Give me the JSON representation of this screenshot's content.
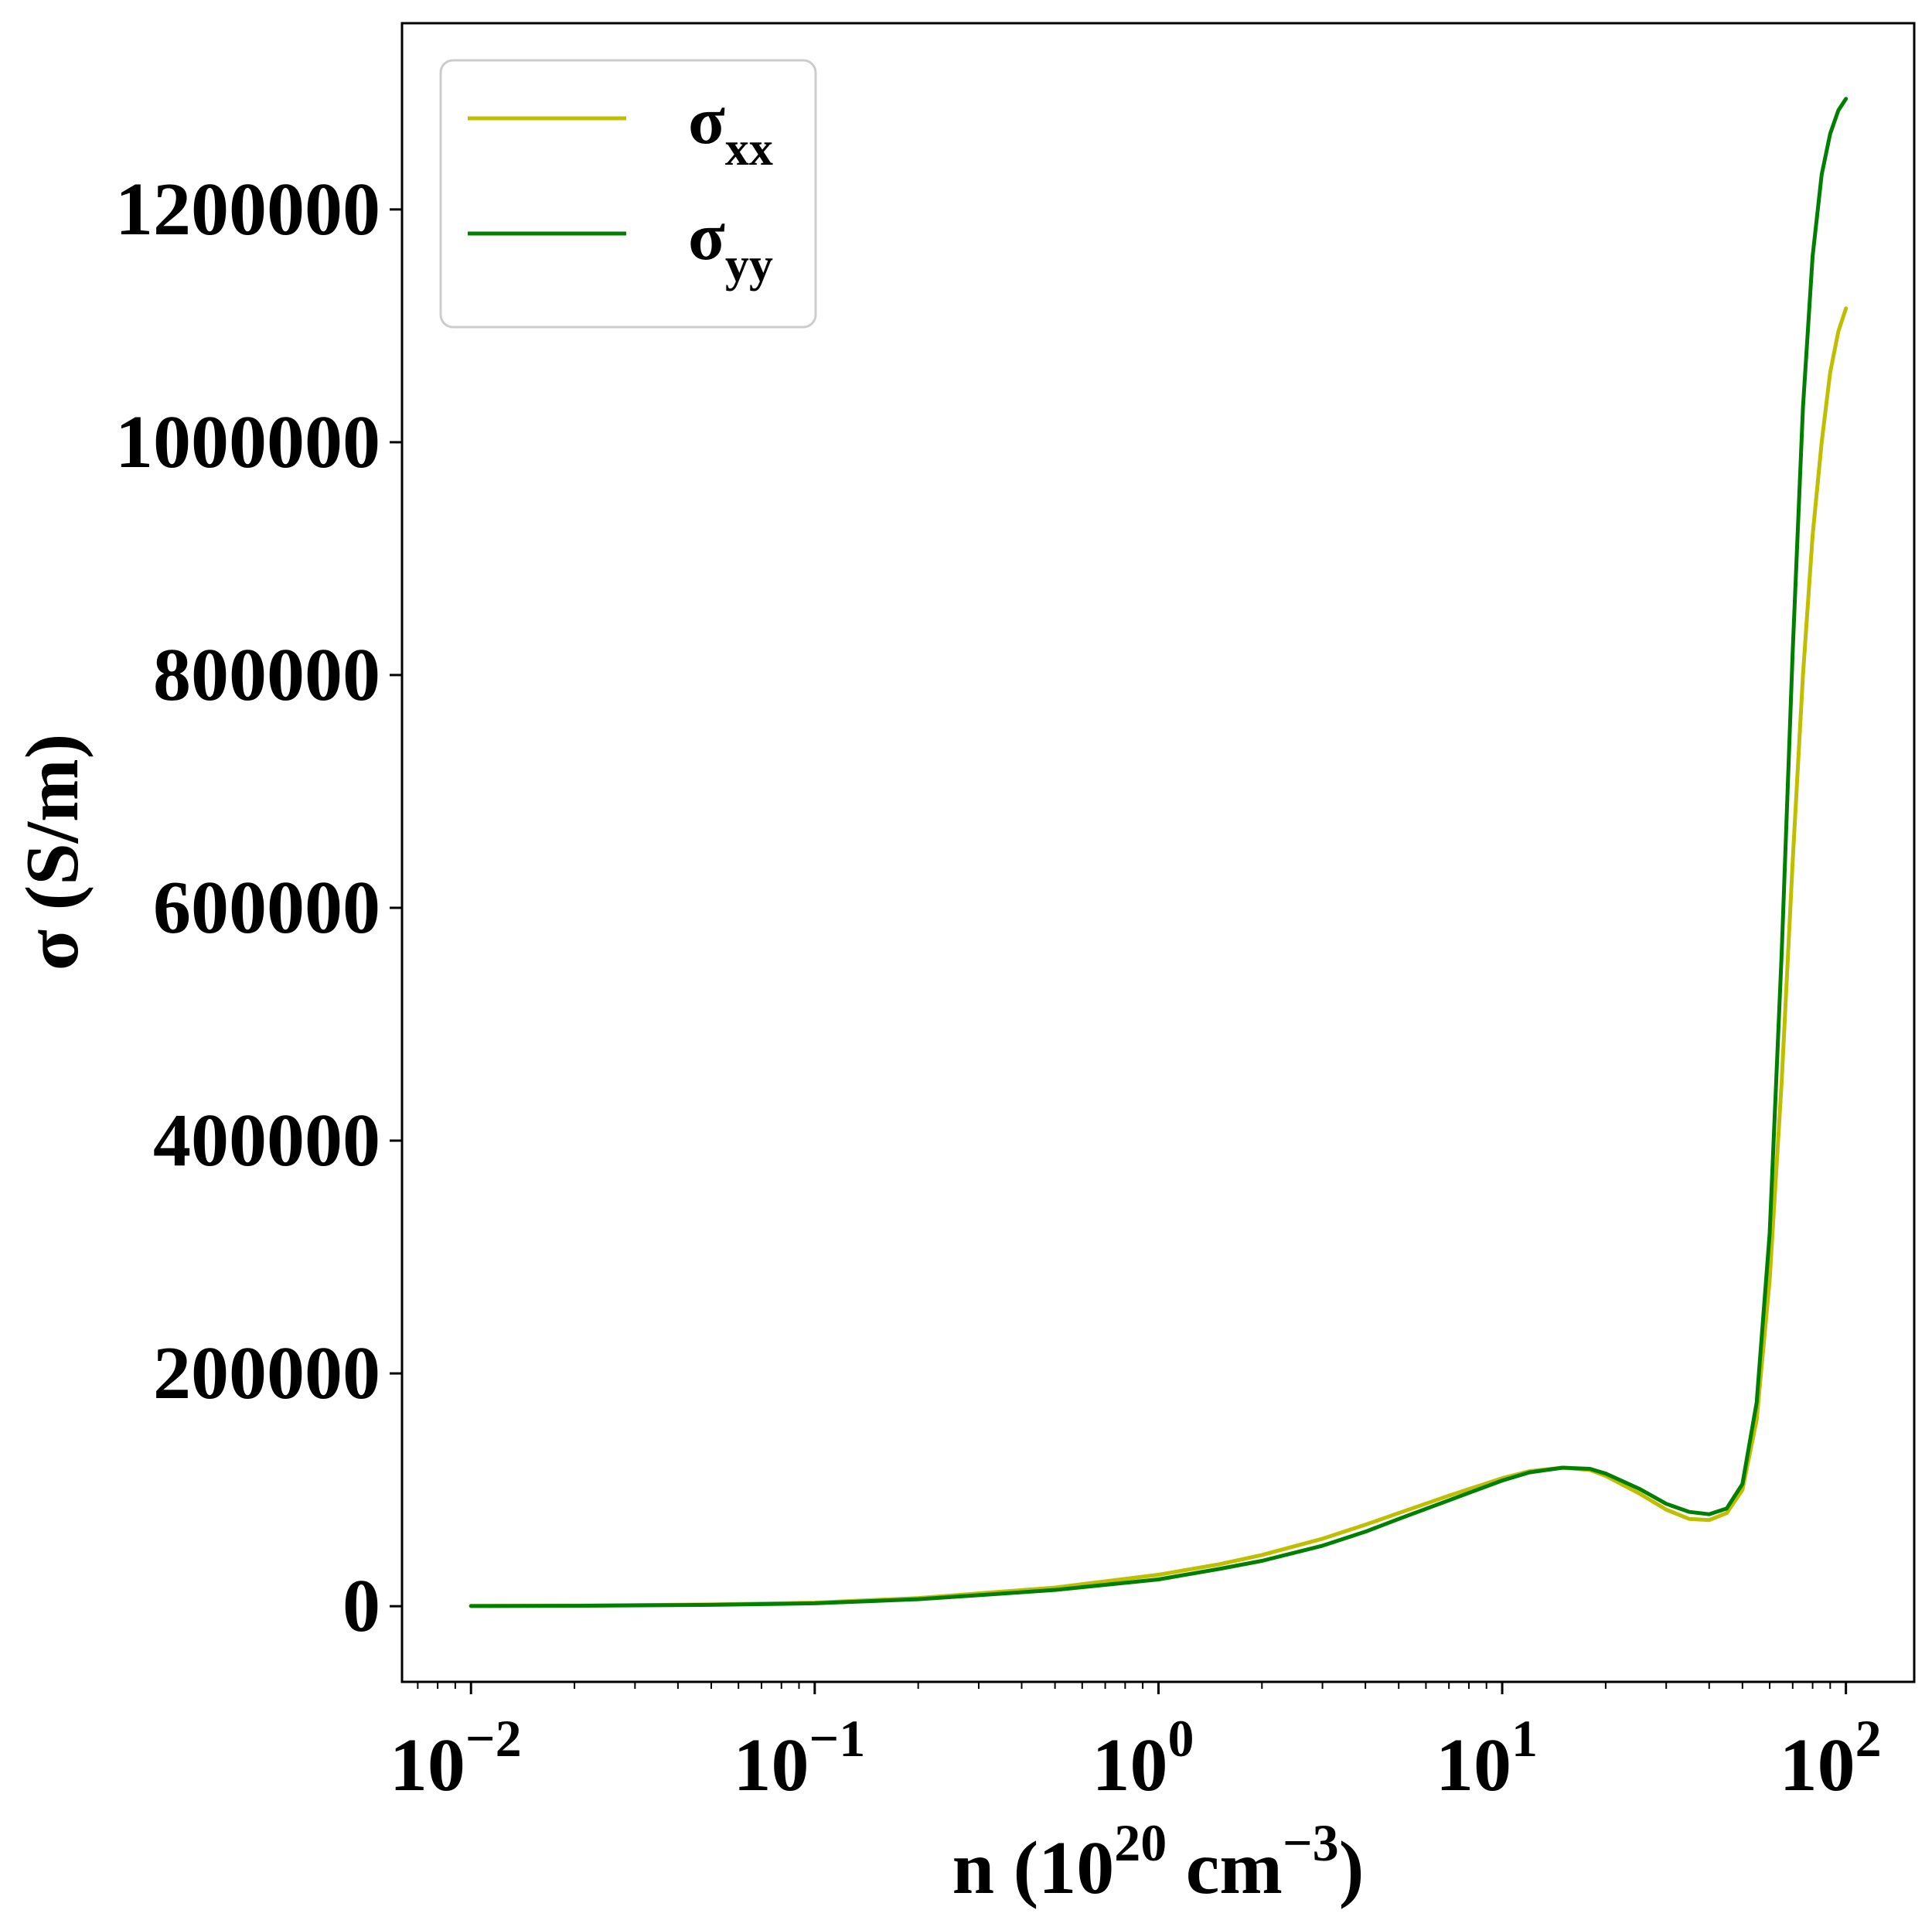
{
  "chart_data": {
    "type": "line",
    "xscale": "log",
    "xlim": [
      0.0063,
      158
    ],
    "ylim": [
      -65000,
      1360000
    ],
    "grid": false,
    "legend_position": "top-left",
    "xlabel": {
      "base": "n (10",
      "sup1": "20",
      "mid": " cm",
      "sup2": "−3",
      "end": ")"
    },
    "ylabel": "σ (S/m)",
    "yticks": [
      0,
      200000,
      400000,
      600000,
      800000,
      1000000,
      1200000
    ],
    "ytick_labels": [
      "0",
      "200000",
      "400000",
      "600000",
      "800000",
      "1000000",
      "1200000"
    ],
    "xticks": [
      0.01,
      0.1,
      1,
      10,
      100
    ],
    "xtick_labels": [
      {
        "base": "10",
        "exp": "−2"
      },
      {
        "base": "10",
        "exp": "−1"
      },
      {
        "base": "10",
        "exp": "0"
      },
      {
        "base": "10",
        "exp": "1"
      },
      {
        "base": "10",
        "exp": "2"
      }
    ],
    "series": [
      {
        "name": "σ",
        "subscript": "xx",
        "color": "#bfbf00",
        "x": [
          0.01,
          0.02,
          0.05,
          0.1,
          0.2,
          0.3,
          0.5,
          1,
          1.5,
          2,
          3,
          4,
          5,
          7,
          10,
          12,
          15,
          18,
          20,
          25,
          30,
          35,
          40,
          45,
          50,
          55,
          60,
          65,
          70,
          75,
          80,
          85,
          90,
          95,
          100
        ],
        "y": [
          200,
          500,
          1500,
          3000,
          7000,
          11000,
          16000,
          27000,
          36000,
          44000,
          58000,
          70000,
          80000,
          95000,
          110000,
          116000,
          119000,
          117000,
          112000,
          97000,
          83000,
          75000,
          74000,
          80000,
          100000,
          160000,
          280000,
          450000,
          640000,
          800000,
          920000,
          1000000,
          1060000,
          1095000,
          1115000
        ]
      },
      {
        "name": "σ",
        "subscript": "yy",
        "color": "#007f00",
        "x": [
          0.01,
          0.02,
          0.05,
          0.1,
          0.2,
          0.3,
          0.5,
          1,
          1.5,
          2,
          3,
          4,
          5,
          7,
          10,
          12,
          15,
          18,
          20,
          25,
          30,
          35,
          40,
          45,
          50,
          55,
          60,
          65,
          70,
          75,
          80,
          85,
          90,
          95,
          100
        ],
        "y": [
          150,
          400,
          1200,
          2500,
          6000,
          9500,
          14000,
          23000,
          32000,
          39000,
          52000,
          64000,
          75000,
          91000,
          108000,
          115000,
          119000,
          118000,
          114000,
          101000,
          88000,
          81000,
          79000,
          84000,
          105000,
          175000,
          320000,
          560000,
          820000,
          1030000,
          1160000,
          1230000,
          1265000,
          1285000,
          1295000
        ]
      }
    ]
  }
}
